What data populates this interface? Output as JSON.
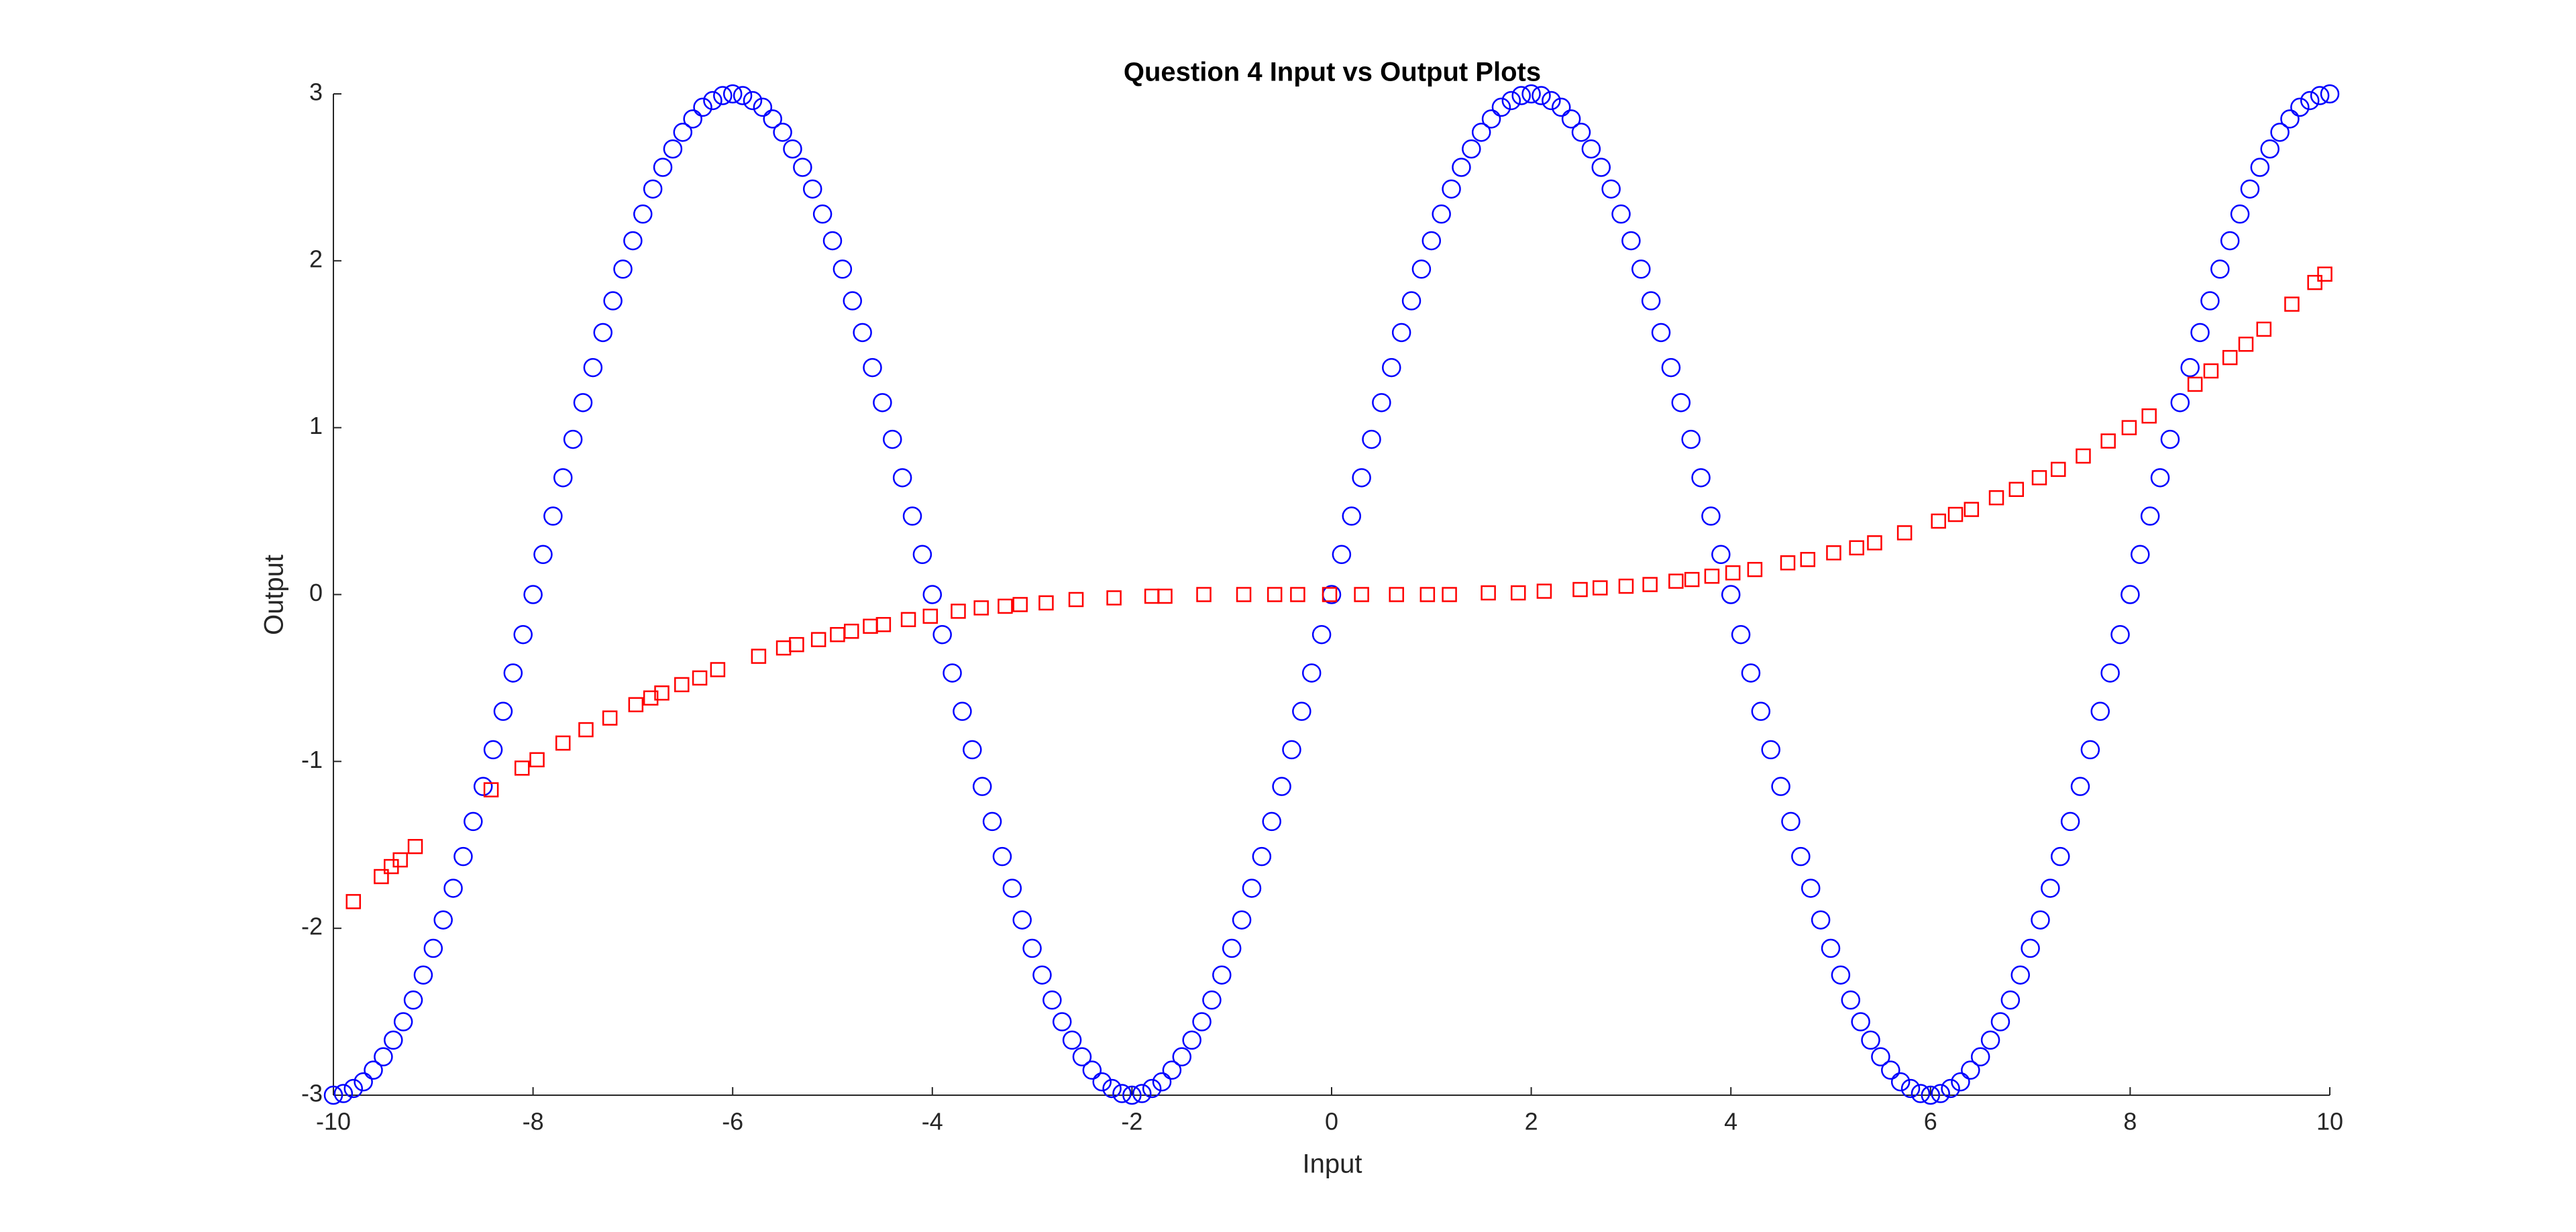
{
  "chart_data": {
    "type": "scatter",
    "title": "Question 4 Input vs Output Plots",
    "x_label": "Input",
    "y_label": "Output",
    "xlim": [
      -10,
      10
    ],
    "xticks": [
      -10,
      -8,
      -6,
      -4,
      -2,
      0,
      2,
      4,
      6,
      8,
      10
    ],
    "ylim": [
      -3,
      3
    ],
    "yticks": [
      -3,
      -2,
      -1,
      0,
      1,
      2,
      3
    ],
    "grid": false,
    "series": [
      {
        "color": "#0000ff",
        "marker": "circle",
        "x": [
          -10,
          -9.9,
          -9.8,
          -9.7,
          -9.6,
          -9.5,
          -9.4,
          -9.3,
          -9.2,
          -9.1,
          -9,
          -8.9,
          -8.8,
          -8.7,
          -8.6,
          -8.5,
          -8.4,
          -8.3,
          -8.2,
          -8.1,
          -8,
          -7.9,
          -7.8,
          -7.7,
          -7.6,
          -7.5,
          -7.4,
          -7.3,
          -7.2,
          -7.1,
          -7,
          -6.9,
          -6.8,
          -6.7,
          -6.6,
          -6.5,
          -6.4,
          -6.3,
          -6.2,
          -6.1,
          -6,
          -5.9,
          -5.8,
          -5.7,
          -5.6,
          -5.5,
          -5.4,
          -5.3,
          -5.2,
          -5.1,
          -5,
          -4.9,
          -4.8,
          -4.7,
          -4.6,
          -4.5,
          -4.4,
          -4.3,
          -4.2,
          -4.1,
          -4,
          -3.9,
          -3.8,
          -3.7,
          -3.6,
          -3.5,
          -3.4,
          -3.3,
          -3.2,
          -3.1,
          -3,
          -2.9,
          -2.8,
          -2.7,
          -2.6,
          -2.5,
          -2.4,
          -2.3,
          -2.2,
          -2.1,
          -2,
          -1.9,
          -1.8,
          -1.7,
          -1.6,
          -1.5,
          -1.4,
          -1.3,
          -1.2,
          -1.1,
          -1,
          -0.9,
          -0.8,
          -0.7,
          -0.6,
          -0.5,
          -0.4,
          -0.3,
          -0.2,
          -0.1,
          0,
          0.1,
          0.2,
          0.3,
          0.4,
          0.5,
          0.6,
          0.7,
          0.8,
          0.9,
          1,
          1.1,
          1.2,
          1.3,
          1.4,
          1.5,
          1.6,
          1.7,
          1.8,
          1.9,
          2,
          2.1,
          2.2,
          2.3,
          2.4,
          2.5,
          2.6,
          2.7,
          2.8,
          2.9,
          3,
          3.1,
          3.2,
          3.3,
          3.4,
          3.5,
          3.6,
          3.7,
          3.8,
          3.9,
          4,
          4.1,
          4.2,
          4.3,
          4.4,
          4.5,
          4.6,
          4.7,
          4.8,
          4.9,
          5,
          5.1,
          5.2,
          5.3,
          5.4,
          5.5,
          5.6,
          5.7,
          5.8,
          5.9,
          6,
          6.1,
          6.2,
          6.3,
          6.4,
          6.5,
          6.6,
          6.7,
          6.8,
          6.9,
          7,
          7.1,
          7.2,
          7.3,
          7.4,
          7.5,
          7.6,
          7.7,
          7.8,
          7.9,
          8,
          8.1,
          8.2,
          8.3,
          8.4,
          8.5,
          8.6,
          8.7,
          8.8,
          8.9,
          9,
          9.1,
          9.2,
          9.3,
          9.4,
          9.5,
          9.6,
          9.7,
          9.8,
          9.9,
          10
        ],
        "values": [
          -3,
          -2.99,
          -2.96,
          -2.92,
          -2.85,
          -2.77,
          -2.67,
          -2.56,
          -2.43,
          -2.28,
          -2.12,
          -1.95,
          -1.76,
          -1.57,
          -1.36,
          -1.15,
          -0.93,
          -0.7,
          -0.47,
          -0.24,
          0,
          0.24,
          0.47,
          0.7,
          0.93,
          1.15,
          1.36,
          1.57,
          1.76,
          1.95,
          2.12,
          2.28,
          2.43,
          2.56,
          2.67,
          2.77,
          2.85,
          2.92,
          2.96,
          2.99,
          3,
          2.99,
          2.96,
          2.92,
          2.85,
          2.77,
          2.67,
          2.56,
          2.43,
          2.28,
          2.12,
          1.95,
          1.76,
          1.57,
          1.36,
          1.15,
          0.93,
          0.7,
          0.47,
          0.24,
          0,
          -0.24,
          -0.47,
          -0.7,
          -0.93,
          -1.15,
          -1.36,
          -1.57,
          -1.76,
          -1.95,
          -2.12,
          -2.28,
          -2.43,
          -2.56,
          -2.67,
          -2.77,
          -2.85,
          -2.92,
          -2.96,
          -2.99,
          -3,
          -2.99,
          -2.96,
          -2.92,
          -2.85,
          -2.77,
          -2.67,
          -2.56,
          -2.43,
          -2.28,
          -2.12,
          -1.95,
          -1.76,
          -1.57,
          -1.36,
          -1.15,
          -0.93,
          -0.7,
          -0.47,
          -0.24,
          0,
          0.24,
          0.47,
          0.7,
          0.93,
          1.15,
          1.36,
          1.57,
          1.76,
          1.95,
          2.12,
          2.28,
          2.43,
          2.56,
          2.67,
          2.77,
          2.85,
          2.92,
          2.96,
          2.99,
          3,
          2.99,
          2.96,
          2.92,
          2.85,
          2.77,
          2.67,
          2.56,
          2.43,
          2.28,
          2.12,
          1.95,
          1.76,
          1.57,
          1.36,
          1.15,
          0.93,
          0.7,
          0.47,
          0.24,
          0,
          -0.24,
          -0.47,
          -0.7,
          -0.93,
          -1.15,
          -1.36,
          -1.57,
          -1.76,
          -1.95,
          -2.12,
          -2.28,
          -2.43,
          -2.56,
          -2.67,
          -2.77,
          -2.85,
          -2.92,
          -2.96,
          -2.99,
          -3,
          -2.99,
          -2.96,
          -2.92,
          -2.85,
          -2.77,
          -2.67,
          -2.56,
          -2.43,
          -2.28,
          -2.12,
          -1.95,
          -1.76,
          -1.57,
          -1.36,
          -1.15,
          -0.93,
          -0.7,
          -0.47,
          -0.24,
          0,
          0.24,
          0.47,
          0.7,
          0.93,
          1.15,
          1.36,
          1.57,
          1.76,
          1.95,
          2.12,
          2.28,
          2.43,
          2.56,
          2.67,
          2.77,
          2.85,
          2.92,
          2.96,
          2.99,
          3
        ]
      },
      {
        "color": "#ff0000",
        "marker": "square",
        "x": [
          -9.8,
          -9.52,
          -9.42,
          -9.33,
          -9.18,
          -8.42,
          -8.11,
          -7.96,
          -7.7,
          -7.47,
          -7.23,
          -6.97,
          -6.82,
          -6.71,
          -6.51,
          -6.33,
          -6.15,
          -5.74,
          -5.49,
          -5.36,
          -5.14,
          -4.95,
          -4.81,
          -4.62,
          -4.49,
          -4.24,
          -4.02,
          -3.74,
          -3.51,
          -3.27,
          -3.12,
          -2.86,
          -2.56,
          -2.18,
          -1.8,
          -1.67,
          -1.28,
          -0.88,
          -0.57,
          -0.34,
          -0.02,
          0.3,
          0.65,
          0.96,
          1.18,
          1.57,
          1.87,
          2.13,
          2.49,
          2.69,
          2.95,
          3.19,
          3.45,
          3.61,
          3.81,
          4.02,
          4.24,
          4.57,
          4.77,
          5.03,
          5.26,
          5.44,
          5.74,
          6.08,
          6.25,
          6.41,
          6.66,
          6.86,
          7.09,
          7.28,
          7.53,
          7.78,
          7.99,
          8.19,
          8.65,
          8.81,
          9,
          9.16,
          9.34,
          9.62,
          9.85,
          9.95
        ],
        "values": [
          -1.84,
          -1.69,
          -1.63,
          -1.59,
          -1.51,
          -1.17,
          -1.04,
          -0.99,
          -0.89,
          -0.81,
          -0.74,
          -0.66,
          -0.62,
          -0.59,
          -0.54,
          -0.5,
          -0.45,
          -0.37,
          -0.32,
          -0.3,
          -0.27,
          -0.24,
          -0.22,
          -0.19,
          -0.18,
          -0.15,
          -0.13,
          -0.1,
          -0.08,
          -0.07,
          -0.06,
          -0.05,
          -0.03,
          -0.02,
          -0.01,
          -0.01,
          0,
          0,
          0,
          0,
          0,
          0,
          0,
          0,
          0,
          0.01,
          0.01,
          0.02,
          0.03,
          0.04,
          0.05,
          0.06,
          0.08,
          0.09,
          0.11,
          0.13,
          0.15,
          0.19,
          0.21,
          0.25,
          0.28,
          0.31,
          0.37,
          0.44,
          0.48,
          0.51,
          0.58,
          0.63,
          0.7,
          0.75,
          0.83,
          0.92,
          1,
          1.07,
          1.26,
          1.34,
          1.42,
          1.5,
          1.59,
          1.74,
          1.87,
          1.92
        ]
      }
    ]
  }
}
